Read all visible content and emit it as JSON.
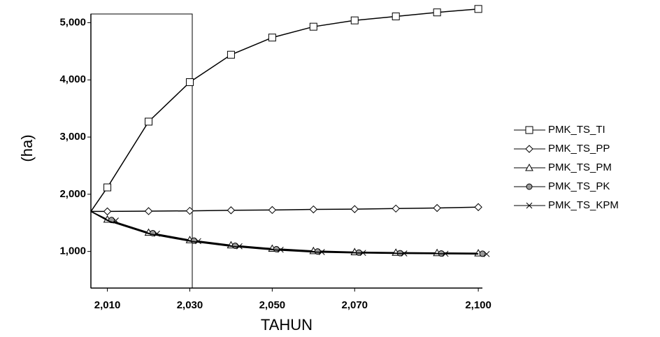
{
  "chart_data": {
    "type": "line",
    "y_label": "(ha)",
    "x_label": "TAHUN",
    "x": [
      2006,
      2010,
      2020,
      2030,
      2040,
      2050,
      2060,
      2070,
      2080,
      2090,
      2100
    ],
    "series": [
      {
        "name": "PMK_TS_TI",
        "color": "#000000",
        "marker": "square",
        "values": [
          1700,
          2120,
          3270,
          3960,
          4440,
          4740,
          4930,
          5040,
          5110,
          5180,
          5240
        ]
      },
      {
        "name": "PMK_TS_PP",
        "color": "#000000",
        "marker": "diamond",
        "values": [
          1700,
          1700,
          1705,
          1710,
          1720,
          1725,
          1735,
          1740,
          1750,
          1760,
          1775
        ]
      },
      {
        "name": "PMK_TS_PM",
        "color": "#000000",
        "marker": "triangle",
        "values": [
          1700,
          1560,
          1330,
          1200,
          1110,
          1050,
          1010,
          990,
          980,
          975,
          970
        ]
      },
      {
        "name": "PMK_TS_PK",
        "color": "#000000",
        "marker": "circle",
        "values": [
          1700,
          1550,
          1320,
          1190,
          1100,
          1040,
          1000,
          980,
          970,
          965,
          960
        ]
      },
      {
        "name": "PMK_TS_KPM",
        "color": "#000000",
        "marker": "cross",
        "values": [
          1700,
          1540,
          1310,
          1180,
          1090,
          1030,
          990,
          975,
          965,
          960,
          955
        ]
      }
    ],
    "xlim": [
      2006,
      2101
    ],
    "ylim": [
      360,
      5250
    ],
    "xticks": [
      {
        "value": 2010,
        "label": "2,010"
      },
      {
        "value": 2030,
        "label": "2,030"
      },
      {
        "value": 2050,
        "label": "2,050"
      },
      {
        "value": 2070,
        "label": "2,070"
      },
      {
        "value": 2100,
        "label": "2,100"
      }
    ],
    "yticks": [
      {
        "value": 1000,
        "label": "1,000"
      },
      {
        "value": 2000,
        "label": "2,000"
      },
      {
        "value": 3000,
        "label": "3,000"
      },
      {
        "value": 4000,
        "label": "4,000"
      },
      {
        "value": 5000,
        "label": "5,000"
      }
    ],
    "grid": false,
    "legend": "right"
  }
}
